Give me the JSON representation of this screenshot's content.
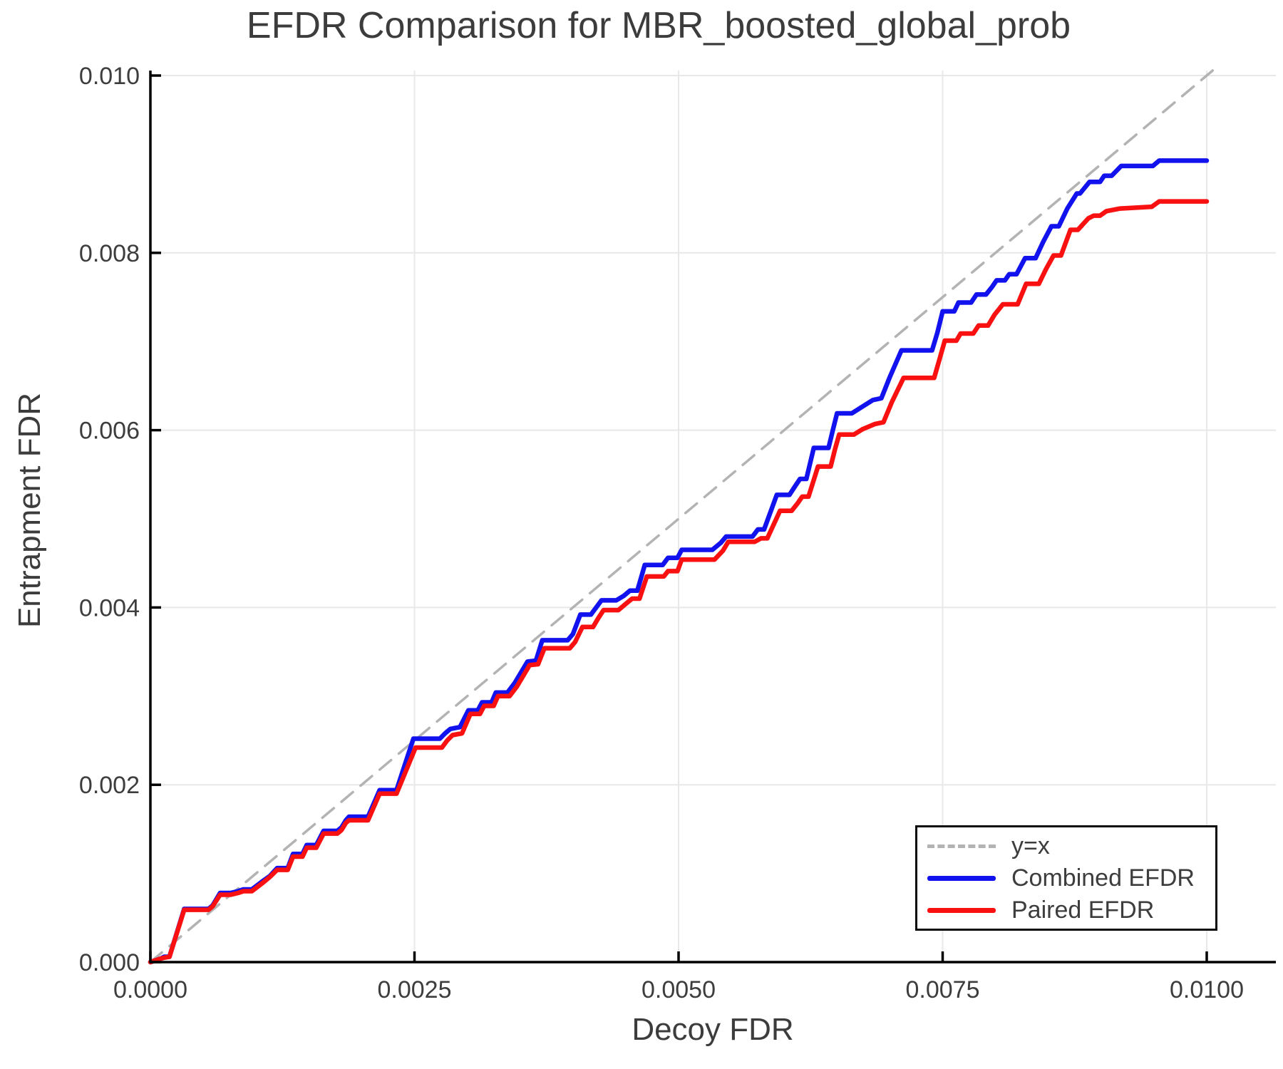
{
  "chart_data": {
    "type": "line",
    "title": "EFDR Comparison for MBR_boosted_global_prob",
    "xlabel": "Decoy FDR",
    "ylabel": "Entrapment FDR",
    "xlim": [
      0,
      0.01
    ],
    "ylim": [
      0,
      0.01
    ],
    "grid": true,
    "background": "#ffffff",
    "grid_color": "#e8e8e8",
    "text_color": "#3d3d3d",
    "x_ticks": {
      "values": [
        0,
        0.0025,
        0.005,
        0.0075,
        0.01
      ],
      "labels": [
        "0.0000",
        "0.0025",
        "0.0050",
        "0.0075",
        "0.0100"
      ]
    },
    "y_ticks": {
      "values": [
        0,
        0.002,
        0.004,
        0.006,
        0.008,
        0.01
      ],
      "labels": [
        "0.000",
        "0.002",
        "0.004",
        "0.006",
        "0.008",
        "0.010"
      ]
    },
    "legend": {
      "position": "bottom-right",
      "entries": [
        {
          "label": "y=x",
          "color": "#b3b3b3",
          "style": "dashed"
        },
        {
          "label": "Combined EFDR",
          "color": "#1212ee",
          "style": "solid"
        },
        {
          "label": "Paired EFDR",
          "color": "#f91111",
          "style": "solid"
        }
      ]
    },
    "series": [
      {
        "name": "y=x",
        "style": "dashed",
        "color": "#b3b3b3",
        "points": [
          [
            0,
            0
          ],
          [
            0.010056,
            0.010056
          ]
        ]
      },
      {
        "name": "Combined EFDR",
        "style": "solid",
        "color": "#1212ee",
        "points": [
          [
            0,
            0
          ],
          [
            0.0001,
            4e-05
          ],
          [
            0.00013,
            6e-05
          ],
          [
            0.00018,
            6e-05
          ],
          [
            0.00032,
            0.0006
          ],
          [
            0.00055,
            0.0006
          ],
          [
            0.00059,
            0.00064
          ],
          [
            0.00066,
            0.00078
          ],
          [
            0.00076,
            0.00078
          ],
          [
            0.00083,
            0.0008
          ],
          [
            0.00088,
            0.00082
          ],
          [
            0.00096,
            0.00082
          ],
          [
            0.00107,
            0.00092
          ],
          [
            0.00113,
            0.00097
          ],
          [
            0.0012,
            0.00106
          ],
          [
            0.0013,
            0.00106
          ],
          [
            0.00135,
            0.00122
          ],
          [
            0.00144,
            0.00122
          ],
          [
            0.00148,
            0.00132
          ],
          [
            0.00157,
            0.00132
          ],
          [
            0.00164,
            0.00148
          ],
          [
            0.00177,
            0.00148
          ],
          [
            0.00181,
            0.00152
          ],
          [
            0.00185,
            0.0016
          ],
          [
            0.00188,
            0.00164
          ],
          [
            0.00206,
            0.00164
          ],
          [
            0.00217,
            0.00194
          ],
          [
            0.00233,
            0.00194
          ],
          [
            0.00249,
            0.00252
          ],
          [
            0.00274,
            0.00252
          ],
          [
            0.00279,
            0.00258
          ],
          [
            0.00284,
            0.00263
          ],
          [
            0.00293,
            0.00265
          ],
          [
            0.00301,
            0.00284
          ],
          [
            0.0031,
            0.00284
          ],
          [
            0.00314,
            0.00293
          ],
          [
            0.00323,
            0.00293
          ],
          [
            0.00327,
            0.00304
          ],
          [
            0.00338,
            0.00304
          ],
          [
            0.00345,
            0.00315
          ],
          [
            0.00357,
            0.00339
          ],
          [
            0.00365,
            0.0034
          ],
          [
            0.00371,
            0.00363
          ],
          [
            0.00395,
            0.00363
          ],
          [
            0.004,
            0.0037
          ],
          [
            0.00407,
            0.00392
          ],
          [
            0.00417,
            0.00392
          ],
          [
            0.00422,
            0.004
          ],
          [
            0.00427,
            0.00408
          ],
          [
            0.00441,
            0.00408
          ],
          [
            0.00448,
            0.00413
          ],
          [
            0.00454,
            0.00419
          ],
          [
            0.00461,
            0.00419
          ],
          [
            0.00468,
            0.00448
          ],
          [
            0.00485,
            0.00448
          ],
          [
            0.0049,
            0.00456
          ],
          [
            0.00499,
            0.00456
          ],
          [
            0.00503,
            0.00465
          ],
          [
            0.00532,
            0.00465
          ],
          [
            0.0054,
            0.00473
          ],
          [
            0.00545,
            0.0048
          ],
          [
            0.0057,
            0.0048
          ],
          [
            0.00575,
            0.00488
          ],
          [
            0.00581,
            0.00488
          ],
          [
            0.00593,
            0.00527
          ],
          [
            0.00605,
            0.00527
          ],
          [
            0.00611,
            0.00538
          ],
          [
            0.00615,
            0.00545
          ],
          [
            0.00621,
            0.00545
          ],
          [
            0.00628,
            0.0058
          ],
          [
            0.00642,
            0.0058
          ],
          [
            0.00646,
            0.006
          ],
          [
            0.0065,
            0.00619
          ],
          [
            0.00664,
            0.00619
          ],
          [
            0.00672,
            0.00625
          ],
          [
            0.00684,
            0.00634
          ],
          [
            0.00692,
            0.00636
          ],
          [
            0.007,
            0.0066
          ],
          [
            0.00711,
            0.0069
          ],
          [
            0.0074,
            0.0069
          ],
          [
            0.00745,
            0.0071
          ],
          [
            0.0075,
            0.00734
          ],
          [
            0.00761,
            0.00734
          ],
          [
            0.00765,
            0.00744
          ],
          [
            0.00777,
            0.00744
          ],
          [
            0.00782,
            0.00753
          ],
          [
            0.00791,
            0.00753
          ],
          [
            0.00797,
            0.00762
          ],
          [
            0.00801,
            0.00769
          ],
          [
            0.00809,
            0.00769
          ],
          [
            0.00813,
            0.00776
          ],
          [
            0.0082,
            0.00776
          ],
          [
            0.00828,
            0.00794
          ],
          [
            0.00838,
            0.00794
          ],
          [
            0.00845,
            0.00812
          ],
          [
            0.00853,
            0.0083
          ],
          [
            0.0086,
            0.0083
          ],
          [
            0.00868,
            0.0085
          ],
          [
            0.00877,
            0.00867
          ],
          [
            0.0088,
            0.00867
          ],
          [
            0.00889,
            0.0088
          ],
          [
            0.00899,
            0.0088
          ],
          [
            0.00903,
            0.00887
          ],
          [
            0.0091,
            0.00887
          ],
          [
            0.00919,
            0.00898
          ],
          [
            0.00949,
            0.00898
          ],
          [
            0.00955,
            0.00904
          ],
          [
            0.01,
            0.00904
          ]
        ]
      },
      {
        "name": "Paired EFDR",
        "style": "solid",
        "color": "#f91111",
        "points": [
          [
            0,
            0
          ],
          [
            0.0001,
            4e-05
          ],
          [
            0.00013,
            5e-05
          ],
          [
            0.00018,
            6e-05
          ],
          [
            0.00032,
            0.00059
          ],
          [
            0.00055,
            0.00059
          ],
          [
            0.00059,
            0.00063
          ],
          [
            0.00066,
            0.00076
          ],
          [
            0.00076,
            0.00076
          ],
          [
            0.00083,
            0.00078
          ],
          [
            0.00088,
            0.0008
          ],
          [
            0.00096,
            0.0008
          ],
          [
            0.00107,
            0.0009
          ],
          [
            0.00113,
            0.00096
          ],
          [
            0.0012,
            0.00104
          ],
          [
            0.0013,
            0.00104
          ],
          [
            0.00135,
            0.00119
          ],
          [
            0.00144,
            0.00119
          ],
          [
            0.00148,
            0.00129
          ],
          [
            0.00157,
            0.00129
          ],
          [
            0.00164,
            0.00145
          ],
          [
            0.00177,
            0.00145
          ],
          [
            0.00181,
            0.00149
          ],
          [
            0.00185,
            0.00157
          ],
          [
            0.00188,
            0.0016
          ],
          [
            0.00206,
            0.0016
          ],
          [
            0.00217,
            0.0019
          ],
          [
            0.00233,
            0.0019
          ],
          [
            0.00251,
            0.00242
          ],
          [
            0.00276,
            0.00242
          ],
          [
            0.00281,
            0.0025
          ],
          [
            0.00286,
            0.00256
          ],
          [
            0.00295,
            0.00258
          ],
          [
            0.00303,
            0.0028
          ],
          [
            0.00312,
            0.0028
          ],
          [
            0.00316,
            0.00289
          ],
          [
            0.00325,
            0.00289
          ],
          [
            0.00329,
            0.003
          ],
          [
            0.0034,
            0.003
          ],
          [
            0.00347,
            0.00311
          ],
          [
            0.00359,
            0.00335
          ],
          [
            0.00367,
            0.00336
          ],
          [
            0.00373,
            0.00354
          ],
          [
            0.00397,
            0.00354
          ],
          [
            0.00402,
            0.00361
          ],
          [
            0.00409,
            0.00378
          ],
          [
            0.00419,
            0.00378
          ],
          [
            0.00424,
            0.00388
          ],
          [
            0.00429,
            0.00397
          ],
          [
            0.00443,
            0.00397
          ],
          [
            0.0045,
            0.00404
          ],
          [
            0.00456,
            0.0041
          ],
          [
            0.00463,
            0.0041
          ],
          [
            0.0047,
            0.00435
          ],
          [
            0.00486,
            0.00435
          ],
          [
            0.0049,
            0.00441
          ],
          [
            0.00499,
            0.00441
          ],
          [
            0.00503,
            0.00454
          ],
          [
            0.00534,
            0.00454
          ],
          [
            0.00542,
            0.00464
          ],
          [
            0.00547,
            0.00474
          ],
          [
            0.00572,
            0.00474
          ],
          [
            0.00578,
            0.00478
          ],
          [
            0.00584,
            0.00478
          ],
          [
            0.00596,
            0.00509
          ],
          [
            0.00607,
            0.00509
          ],
          [
            0.00613,
            0.00518
          ],
          [
            0.00617,
            0.00525
          ],
          [
            0.00623,
            0.00525
          ],
          [
            0.00632,
            0.00559
          ],
          [
            0.00644,
            0.00559
          ],
          [
            0.00648,
            0.00578
          ],
          [
            0.00652,
            0.00595
          ],
          [
            0.00666,
            0.00595
          ],
          [
            0.00674,
            0.00601
          ],
          [
            0.00686,
            0.00607
          ],
          [
            0.00694,
            0.00609
          ],
          [
            0.00702,
            0.00632
          ],
          [
            0.00713,
            0.00659
          ],
          [
            0.00742,
            0.00659
          ],
          [
            0.00747,
            0.0068
          ],
          [
            0.00752,
            0.00701
          ],
          [
            0.00763,
            0.00701
          ],
          [
            0.00767,
            0.00709
          ],
          [
            0.00779,
            0.00709
          ],
          [
            0.00784,
            0.00718
          ],
          [
            0.00793,
            0.00718
          ],
          [
            0.00799,
            0.0073
          ],
          [
            0.00807,
            0.00742
          ],
          [
            0.00821,
            0.00742
          ],
          [
            0.00829,
            0.00765
          ],
          [
            0.00841,
            0.00765
          ],
          [
            0.00848,
            0.00782
          ],
          [
            0.00855,
            0.00797
          ],
          [
            0.00862,
            0.00797
          ],
          [
            0.00871,
            0.00826
          ],
          [
            0.00878,
            0.00826
          ],
          [
            0.00888,
            0.00839
          ],
          [
            0.00893,
            0.00842
          ],
          [
            0.00899,
            0.00842
          ],
          [
            0.00905,
            0.00847
          ],
          [
            0.00918,
            0.0085
          ],
          [
            0.00948,
            0.00852
          ],
          [
            0.00955,
            0.00858
          ],
          [
            0.01,
            0.00858
          ]
        ]
      }
    ]
  }
}
